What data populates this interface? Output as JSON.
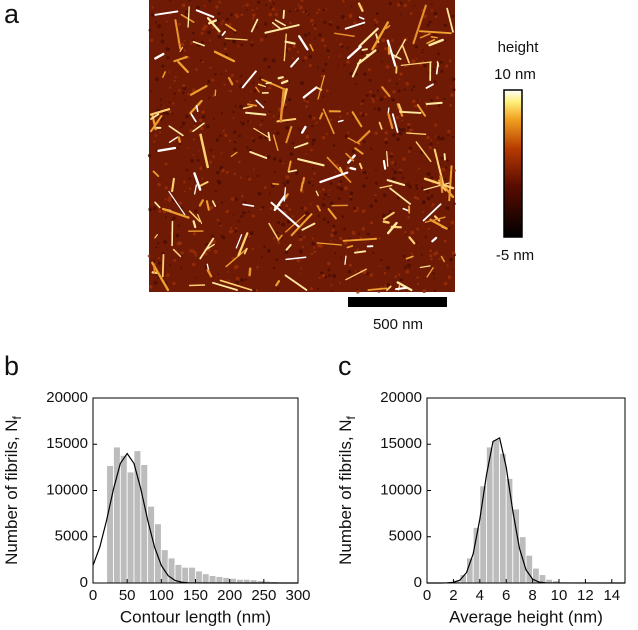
{
  "image_panel": {
    "label": "a",
    "colorbar_title": "height",
    "colorbar_max_label": "10 nm",
    "colorbar_min_label": "-5 nm",
    "scale_bar_label": "500 nm"
  },
  "chart_data": [
    {
      "type": "histogram",
      "label": "b",
      "xlabel": "Contour length (nm)",
      "ylabel": [
        "Number of fibrils, N",
        "f"
      ],
      "bins": [
        20,
        30,
        40,
        50,
        60,
        70,
        80,
        90,
        100,
        110,
        120,
        130,
        140,
        150,
        160,
        170,
        180,
        190,
        200,
        210,
        220,
        230,
        240,
        250,
        260,
        270,
        280,
        290,
        300
      ],
      "values": [
        12700,
        14700,
        13800,
        12000,
        14300,
        12800,
        8300,
        6400,
        3600,
        2700,
        2000,
        1700,
        1700,
        1300,
        1000,
        800,
        700,
        600,
        500,
        400,
        400,
        350,
        250,
        200,
        150,
        100,
        80,
        50
      ],
      "color": "#bcbcbc",
      "fit": {
        "color": "#000000",
        "x": [
          0,
          10,
          20,
          30,
          40,
          50,
          60,
          70,
          80,
          90,
          100,
          110,
          120,
          130,
          140,
          150,
          300
        ],
        "values": [
          1895,
          3893,
          6815,
          10167,
          12924,
          14000,
          12924,
          10167,
          6815,
          3893,
          1895,
          786,
          278,
          84,
          21,
          5,
          0
        ]
      },
      "xlim": [
        0,
        300
      ],
      "xticks": [
        0,
        50,
        100,
        150,
        200,
        250,
        300
      ],
      "ylim": [
        0,
        20000
      ],
      "yticks": [
        0,
        5000,
        10000,
        15000,
        20000
      ]
    },
    {
      "type": "histogram",
      "label": "c",
      "xlabel": "Average height (nm)",
      "ylabel": [
        "Number of fibrils, N",
        "f"
      ],
      "bins": [
        1.5,
        2,
        2.5,
        3,
        3.5,
        4,
        4.5,
        5,
        5.5,
        6,
        6.5,
        7,
        7.5,
        8,
        8.5,
        9,
        9.5,
        10,
        10.5,
        11
      ],
      "values": [
        100,
        300,
        900,
        2700,
        6000,
        10500,
        14700,
        15500,
        14000,
        11300,
        8000,
        5000,
        3000,
        1600,
        900,
        400,
        250,
        100,
        50
      ],
      "color": "#bcbcbc",
      "fit": {
        "color": "#000000",
        "x": [
          0,
          1,
          1.5,
          2,
          2.5,
          3,
          3.5,
          4,
          4.5,
          5,
          5.5,
          6,
          6.5,
          7,
          7.5,
          8,
          8.5,
          9,
          15
        ],
        "values": [
          0,
          2,
          12,
          69,
          317,
          1135,
          3166,
          6873,
          11619,
          15296,
          15683,
          12525,
          7788,
          3772,
          1422,
          418,
          95,
          17,
          0
        ]
      },
      "xlim": [
        0,
        15
      ],
      "xticks": [
        0,
        2,
        4,
        6,
        8,
        10,
        12,
        14
      ],
      "ylim": [
        0,
        20000
      ],
      "yticks": [
        0,
        5000,
        10000,
        15000,
        20000
      ]
    }
  ]
}
